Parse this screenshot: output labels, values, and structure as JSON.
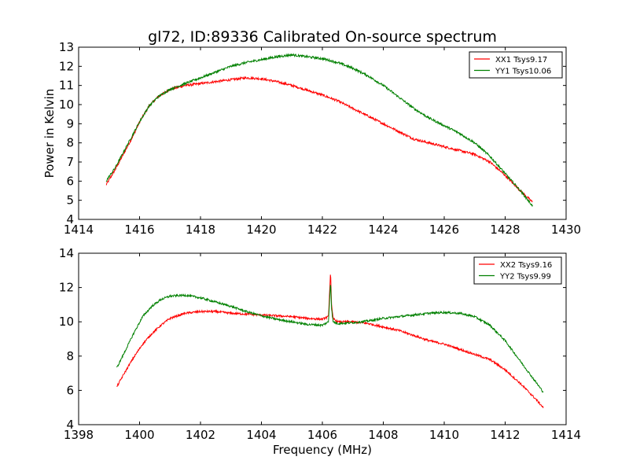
{
  "page": {
    "background": "#ffffff"
  },
  "chart_data": [
    {
      "type": "line",
      "title": "gl72, ID:89336 Calibrated On-source spectrum",
      "xlabel": "",
      "ylabel": "Power in Kelvin",
      "xlim": [
        1414,
        1430
      ],
      "ylim": [
        4,
        13
      ],
      "xticks": [
        1414,
        1416,
        1418,
        1420,
        1422,
        1424,
        1426,
        1428,
        1430
      ],
      "yticks": [
        4,
        5,
        6,
        7,
        8,
        9,
        10,
        11,
        12,
        13
      ],
      "grid": false,
      "legend_position": "top-right",
      "series": [
        {
          "name": "XX1 Tsys9.17",
          "color": "#ff0000",
          "x": [
            1414.9,
            1415.2,
            1415.5,
            1415.8,
            1416.0,
            1416.3,
            1416.6,
            1417.0,
            1417.5,
            1418.0,
            1418.5,
            1419.0,
            1419.5,
            1420.0,
            1420.5,
            1421.0,
            1421.5,
            1422.0,
            1422.5,
            1423.0,
            1423.5,
            1424.0,
            1424.5,
            1425.0,
            1425.5,
            1426.0,
            1426.5,
            1427.0,
            1427.5,
            1428.0,
            1428.5,
            1428.9
          ],
          "y": [
            5.8,
            6.6,
            7.5,
            8.4,
            9.1,
            9.9,
            10.4,
            10.8,
            11.0,
            11.1,
            11.2,
            11.3,
            11.4,
            11.35,
            11.2,
            11.0,
            10.75,
            10.5,
            10.2,
            9.8,
            9.4,
            9.0,
            8.6,
            8.2,
            8.0,
            7.8,
            7.6,
            7.4,
            7.0,
            6.3,
            5.5,
            4.9
          ]
        },
        {
          "name": "YY1 Tsys10.06",
          "color": "#008000",
          "x": [
            1414.9,
            1415.2,
            1415.5,
            1415.8,
            1416.0,
            1416.3,
            1416.6,
            1417.0,
            1417.5,
            1418.0,
            1418.5,
            1419.0,
            1419.5,
            1420.0,
            1420.5,
            1421.0,
            1421.5,
            1422.0,
            1422.5,
            1423.0,
            1423.5,
            1424.0,
            1424.5,
            1425.0,
            1425.5,
            1426.0,
            1426.5,
            1427.0,
            1427.5,
            1428.0,
            1428.5,
            1428.9
          ],
          "y": [
            6.0,
            6.7,
            7.6,
            8.5,
            9.1,
            9.9,
            10.4,
            10.8,
            11.1,
            11.4,
            11.7,
            12.0,
            12.2,
            12.35,
            12.5,
            12.6,
            12.5,
            12.4,
            12.2,
            11.9,
            11.5,
            11.0,
            10.4,
            9.8,
            9.3,
            8.9,
            8.5,
            8.0,
            7.3,
            6.4,
            5.5,
            4.7
          ]
        }
      ]
    },
    {
      "type": "line",
      "title": "",
      "xlabel": "Frequency (MHz)",
      "ylabel": "",
      "xlim": [
        1398,
        1414
      ],
      "ylim": [
        4,
        14
      ],
      "xticks": [
        1398,
        1400,
        1402,
        1404,
        1406,
        1408,
        1410,
        1412,
        1414
      ],
      "yticks": [
        4,
        6,
        8,
        10,
        12,
        14
      ],
      "grid": false,
      "legend_position": "top-right",
      "series": [
        {
          "name": "XX2 Tsys9.16",
          "color": "#ff0000",
          "x": [
            1399.25,
            1399.5,
            1399.8,
            1400.1,
            1400.4,
            1400.7,
            1401.0,
            1401.5,
            1402.0,
            1402.5,
            1403.0,
            1403.5,
            1404.0,
            1404.5,
            1405.0,
            1405.5,
            1406.0,
            1406.2,
            1406.27,
            1406.3,
            1406.35,
            1406.5,
            1407.0,
            1407.5,
            1408.0,
            1408.5,
            1409.0,
            1409.5,
            1410.0,
            1410.5,
            1411.0,
            1411.5,
            1412.0,
            1412.5,
            1413.0,
            1413.25
          ],
          "y": [
            6.2,
            7.0,
            7.9,
            8.7,
            9.3,
            9.8,
            10.2,
            10.5,
            10.6,
            10.6,
            10.5,
            10.45,
            10.4,
            10.35,
            10.3,
            10.2,
            10.15,
            10.3,
            13.0,
            11.0,
            10.2,
            10.0,
            10.0,
            9.9,
            9.7,
            9.5,
            9.2,
            8.9,
            8.7,
            8.4,
            8.1,
            7.8,
            7.2,
            6.4,
            5.5,
            5.0
          ]
        },
        {
          "name": "YY2 Tsys9.99",
          "color": "#008000",
          "x": [
            1399.25,
            1399.5,
            1399.8,
            1400.1,
            1400.4,
            1400.7,
            1401.0,
            1401.5,
            1402.0,
            1402.5,
            1403.0,
            1403.5,
            1404.0,
            1404.5,
            1405.0,
            1405.5,
            1406.0,
            1406.2,
            1406.27,
            1406.3,
            1406.35,
            1406.5,
            1407.0,
            1407.5,
            1408.0,
            1408.5,
            1409.0,
            1409.5,
            1410.0,
            1410.5,
            1411.0,
            1411.5,
            1412.0,
            1412.5,
            1413.0,
            1413.25
          ],
          "y": [
            7.3,
            8.2,
            9.3,
            10.3,
            10.9,
            11.3,
            11.5,
            11.55,
            11.4,
            11.15,
            10.9,
            10.6,
            10.35,
            10.15,
            10.0,
            9.85,
            9.8,
            10.0,
            12.4,
            10.8,
            10.0,
            9.9,
            9.95,
            10.05,
            10.2,
            10.3,
            10.4,
            10.5,
            10.55,
            10.5,
            10.3,
            9.8,
            8.9,
            7.7,
            6.5,
            5.9
          ]
        }
      ]
    }
  ]
}
